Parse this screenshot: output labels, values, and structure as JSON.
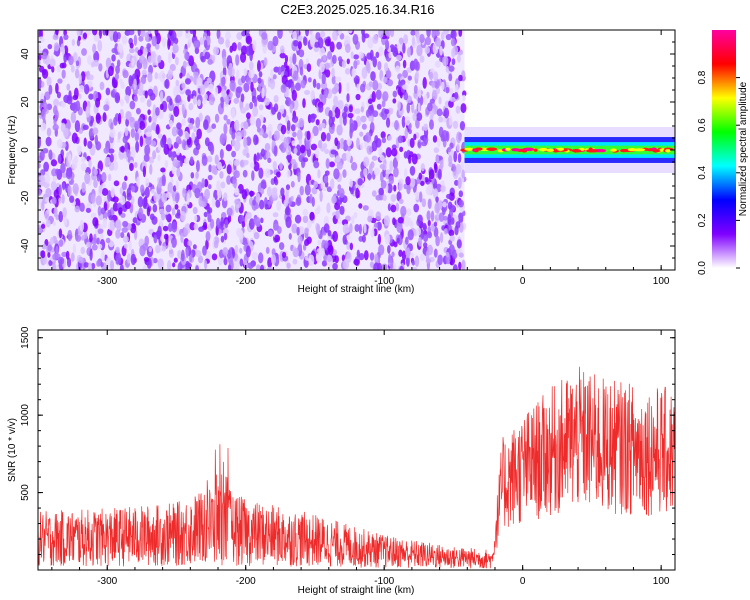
{
  "title": "C2E3.2025.025.16.34.R16",
  "colors": {
    "snr_line": "#ee2b2b",
    "spectrogram_low": "#7f00ff",
    "colorbar_stops": [
      "#ffffff",
      "#7f00ff",
      "#0000ff",
      "#00ffff",
      "#00ff00",
      "#ffff00",
      "#ff0000",
      "#ff00a0"
    ]
  },
  "chart_data": [
    {
      "type": "heatmap",
      "title": "C2E3.2025.025.16.34.R16",
      "xlabel": "Height of straight line (km)",
      "ylabel": "Frequency (Hz)",
      "xlim": [
        -350,
        110
      ],
      "ylim": [
        -50,
        50
      ],
      "x_ticks": [
        "-300",
        "-200",
        "-100",
        "0",
        "100"
      ],
      "y_ticks": [
        "-40",
        "-20",
        "0",
        "20",
        "40"
      ],
      "regions": [
        {
          "x_range": [
            -350,
            -42
          ],
          "y_range": [
            -50,
            50
          ],
          "amplitude_range": [
            0.0,
            0.15
          ],
          "description_value": "broadband noise"
        },
        {
          "x_range": [
            -42,
            110
          ],
          "y_range": [
            -3,
            3
          ],
          "amplitude_range": [
            0.3,
            1.0
          ],
          "center_frequency": 0
        }
      ],
      "colorbar": {
        "label": "Normalized spectral amplitude",
        "range": [
          0.0,
          1.0
        ],
        "ticks": [
          "0.0",
          "0.2",
          "0.4",
          "0.6",
          "0.8"
        ]
      }
    },
    {
      "type": "line",
      "xlabel": "Height of straight line (km)",
      "ylabel": "SNR (10 * v/v)",
      "xlim": [
        -350,
        110
      ],
      "ylim": [
        0,
        1550
      ],
      "x_ticks": [
        "-300",
        "-200",
        "-100",
        "0",
        "100"
      ],
      "y_ticks": [
        "500",
        "1000",
        "1500"
      ],
      "series": [
        {
          "x": [
            -350,
            -300,
            -250,
            -220,
            -200,
            -150,
            -100,
            -50,
            -22,
            -15,
            0,
            20,
            40,
            60,
            80,
            110
          ],
          "y": [
            200,
            210,
            230,
            300,
            240,
            190,
            120,
            80,
            70,
            550,
            650,
            760,
            850,
            800,
            780,
            760
          ]
        }
      ]
    }
  ]
}
